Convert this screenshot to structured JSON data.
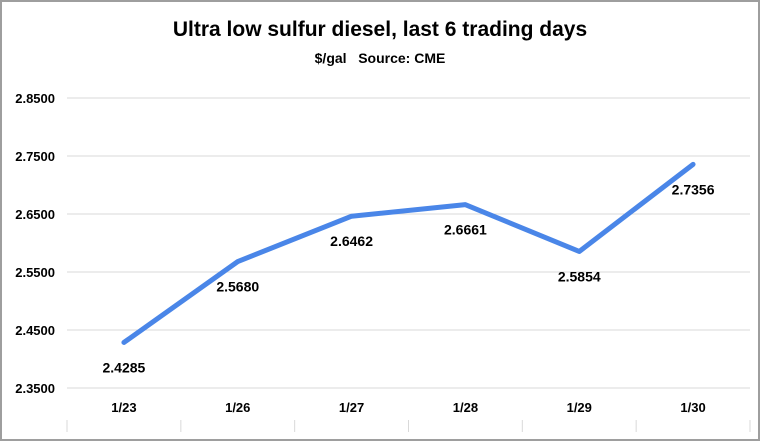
{
  "title": "Ultra low sulfur diesel, last 6 trading days",
  "subtitle": "$/gal   Source: CME",
  "chart_data": {
    "type": "line",
    "title": "Ultra low sulfur diesel, last 6 trading days",
    "subtitle": "$/gal   Source: CME",
    "categories": [
      "1/23",
      "1/26",
      "1/27",
      "1/28",
      "1/29",
      "1/30"
    ],
    "values": [
      2.4285,
      2.568,
      2.6462,
      2.6661,
      2.5854,
      2.7356
    ],
    "point_labels": [
      "2.4285",
      "2.5680",
      "2.6462",
      "2.6661",
      "2.5854",
      "2.7356"
    ],
    "ylim": [
      2.35,
      2.85
    ],
    "yticks": [
      2.35,
      2.45,
      2.55,
      2.65,
      2.75,
      2.85
    ],
    "ytick_labels": [
      "2.3500",
      "2.4500",
      "2.5500",
      "2.6500",
      "2.7500",
      "2.8500"
    ],
    "grid": "horizontal",
    "legend": "none",
    "line_color": "#4a86e8",
    "grid_color": "#d9d9d9",
    "label_color": "#000000"
  }
}
